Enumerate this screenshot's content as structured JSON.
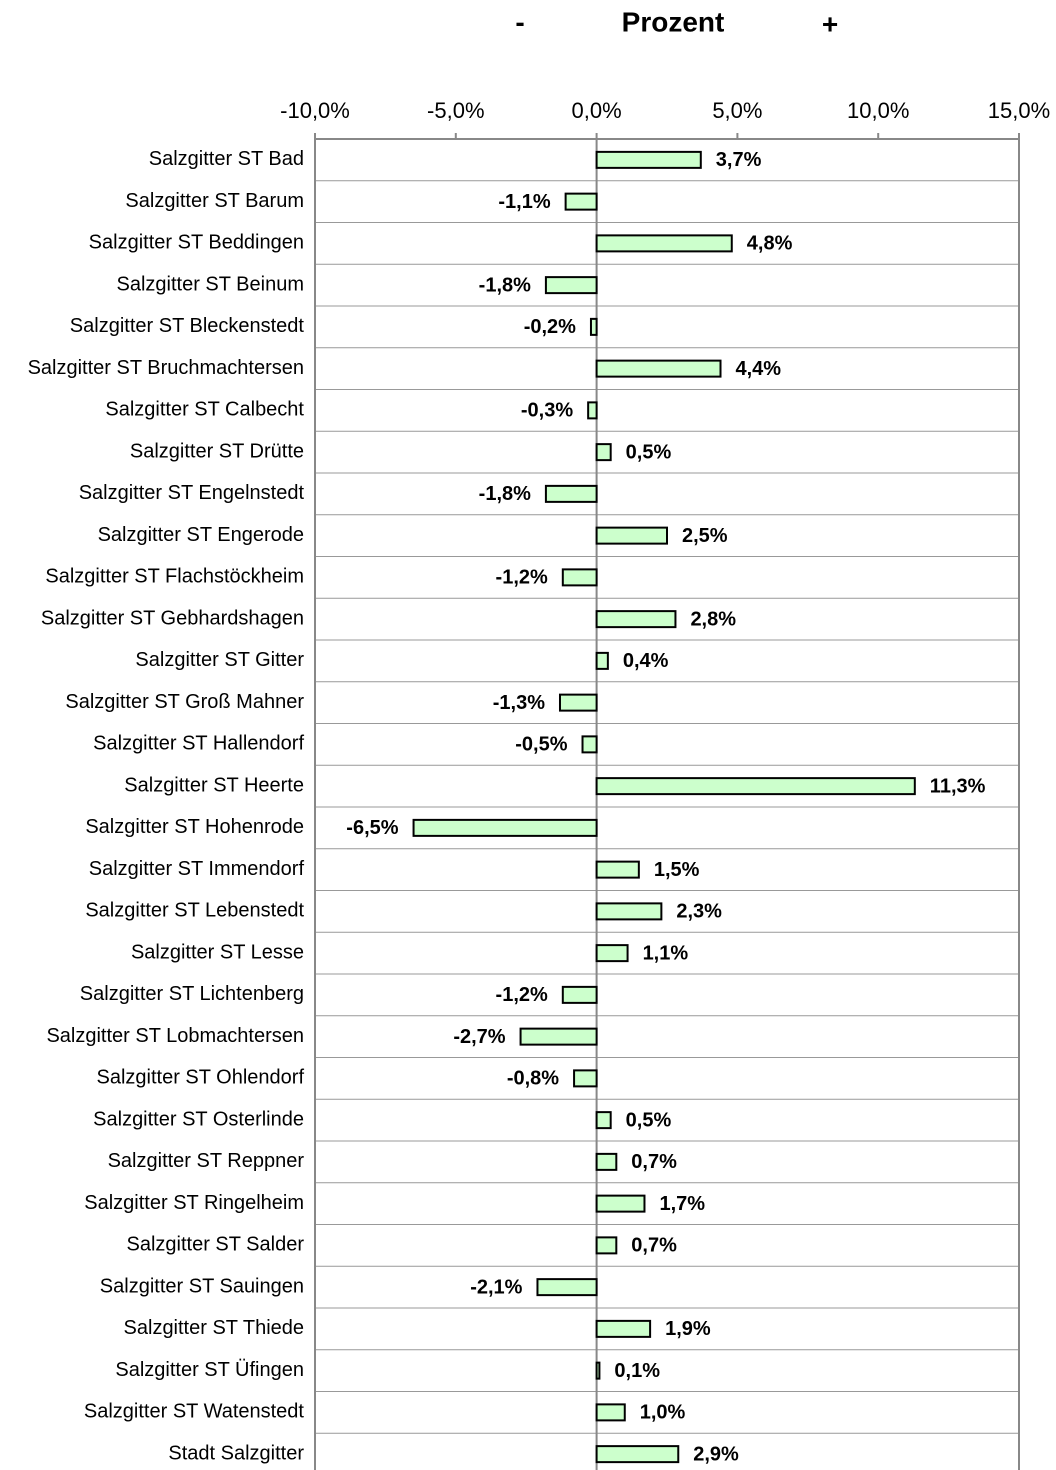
{
  "chart_data": {
    "type": "hbar",
    "title": "Prozent",
    "annotations": [
      "-",
      "+"
    ],
    "categories": [
      "Salzgitter ST Bad",
      "Salzgitter ST Barum",
      "Salzgitter ST Beddingen",
      "Salzgitter ST Beinum",
      "Salzgitter ST Bleckenstedt",
      "Salzgitter ST Bruchmachtersen",
      "Salzgitter ST Calbecht",
      "Salzgitter ST Drütte",
      "Salzgitter ST Engelnstedt",
      "Salzgitter ST Engerode",
      "Salzgitter ST Flachstöckheim",
      "Salzgitter ST Gebhardshagen",
      "Salzgitter ST Gitter",
      "Salzgitter ST Groß Mahner",
      "Salzgitter ST Hallendorf",
      "Salzgitter ST Heerte",
      "Salzgitter ST Hohenrode",
      "Salzgitter ST Immendorf",
      "Salzgitter ST Lebenstedt",
      "Salzgitter ST Lesse",
      "Salzgitter ST Lichtenberg",
      "Salzgitter ST Lobmachtersen",
      "Salzgitter ST Ohlendorf",
      "Salzgitter ST Osterlinde",
      "Salzgitter ST Reppner",
      "Salzgitter ST Ringelheim",
      "Salzgitter ST Salder",
      "Salzgitter ST Sauingen",
      "Salzgitter ST Thiede",
      "Salzgitter ST Üfingen",
      "Salzgitter ST Watenstedt",
      "Stadt Salzgitter"
    ],
    "values": [
      3.7,
      -1.1,
      4.8,
      -1.8,
      -0.2,
      4.4,
      -0.3,
      0.5,
      -1.8,
      2.5,
      -1.2,
      2.8,
      0.4,
      -1.3,
      -0.5,
      11.3,
      -6.5,
      1.5,
      2.3,
      1.1,
      -1.2,
      -2.7,
      -0.8,
      0.5,
      0.7,
      1.7,
      0.7,
      -2.1,
      1.9,
      0.1,
      1.0,
      2.9
    ],
    "value_labels": [
      "3,7%",
      "-1,1%",
      "4,8%",
      "-1,8%",
      "-0,2%",
      "4,4%",
      "-0,3%",
      "0,5%",
      "-1,8%",
      "2,5%",
      "-1,2%",
      "2,8%",
      "0,4%",
      "-1,3%",
      "-0,5%",
      "11,3%",
      "-6,5%",
      "1,5%",
      "2,3%",
      "1,1%",
      "-1,2%",
      "-2,7%",
      "-0,8%",
      "0,5%",
      "0,7%",
      "1,7%",
      "0,7%",
      "-2,1%",
      "1,9%",
      "0,1%",
      "1,0%",
      "2,9%"
    ],
    "color": "#ccffcc",
    "xlim": [
      -10,
      15
    ],
    "xticks": [
      {
        "value": -10,
        "label": "-10,0%"
      },
      {
        "value": -5,
        "label": "-5,0%"
      },
      {
        "value": 0,
        "label": "0,0%"
      },
      {
        "value": 5,
        "label": "5,0%"
      },
      {
        "value": 10,
        "label": "10,0%"
      },
      {
        "value": 15,
        "label": "15,0%"
      }
    ]
  }
}
